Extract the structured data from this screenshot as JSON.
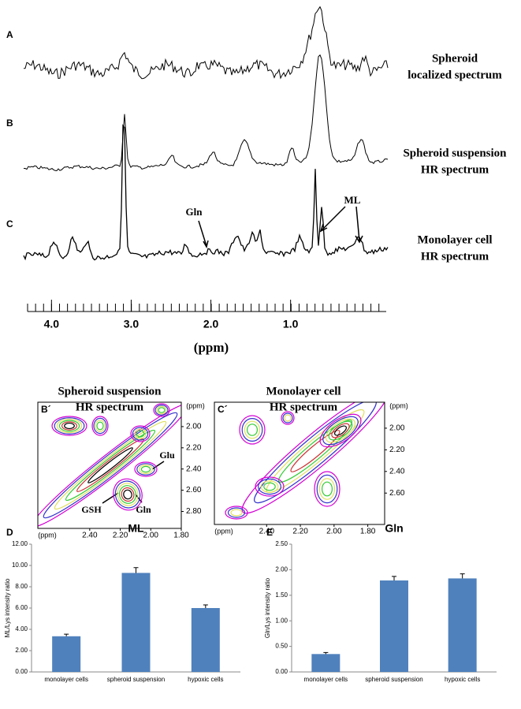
{
  "spectra": {
    "panels": [
      {
        "letter": "A",
        "caption": [
          "Spheroid",
          "localized spectrum"
        ]
      },
      {
        "letter": "B",
        "caption": [
          "Spheroid suspension",
          "HR spectrum"
        ]
      },
      {
        "letter": "C",
        "caption": [
          "Monolayer cell",
          "HR spectrum"
        ]
      }
    ],
    "annotations": [
      "Gln",
      "ML"
    ],
    "xlim": [
      4.3,
      -0.2
    ],
    "xticks": [
      {
        "value": 4,
        "label": "4.0"
      },
      {
        "value": 3,
        "label": "3.0"
      },
      {
        "value": 2,
        "label": "2.0"
      },
      {
        "value": 1,
        "label": "1.0"
      }
    ],
    "xlabel": "(ppm)"
  },
  "cosy": [
    {
      "letter": "B´",
      "title": [
        "Spheroid suspension",
        "HR spectrum"
      ],
      "unit": "(ppm)",
      "xlim": [
        2.74,
        1.8
      ],
      "ylim": [
        1.77,
        2.96
      ],
      "xticks": [
        {
          "value": 2.4,
          "label": "2.40"
        },
        {
          "value": 2.2,
          "label": "2.20"
        },
        {
          "value": 2,
          "label": "2.00"
        },
        {
          "value": 1.8,
          "label": "1.80"
        }
      ],
      "yticks": [
        {
          "value": 2,
          "label": "2.00"
        },
        {
          "value": 2.2,
          "label": "2.20"
        },
        {
          "value": 2.4,
          "label": "2.40"
        },
        {
          "value": 2.6,
          "label": "2.60"
        },
        {
          "value": 2.8,
          "label": "2.80"
        }
      ],
      "annotations": [
        "Glu",
        "GSH",
        "Gln"
      ]
    },
    {
      "letter": "C´",
      "title": [
        "Monolayer cell",
        "HR spectrum"
      ],
      "unit": "(ppm)",
      "xlim": [
        2.71,
        1.7
      ],
      "ylim": [
        1.76,
        2.89
      ],
      "xticks": [
        {
          "value": 2.4,
          "label": "2.40"
        },
        {
          "value": 2.2,
          "label": "2.20"
        },
        {
          "value": 2,
          "label": "2.00"
        },
        {
          "value": 1.8,
          "label": "1.80"
        }
      ],
      "yticks": [
        {
          "value": 2,
          "label": "2.00"
        },
        {
          "value": 2.2,
          "label": "2.20"
        },
        {
          "value": 2.4,
          "label": "2.40"
        },
        {
          "value": 2.6,
          "label": "2.60"
        }
      ]
    }
  ],
  "chart_data": [
    {
      "type": "bar",
      "letter": "D",
      "title": "ML",
      "ylabel": "ML/Lys intensity ratio",
      "color": "#4f81bd",
      "categories": [
        "monolayer cells",
        "spheroid suspension",
        "hypoxic cells"
      ],
      "values": [
        3.35,
        9.3,
        6.0
      ],
      "errors": [
        0.2,
        0.5,
        0.3
      ],
      "ylim": [
        0,
        12
      ],
      "yticks": [
        {
          "value": 0,
          "label": "0.00"
        },
        {
          "value": 2,
          "label": "2.00"
        },
        {
          "value": 4,
          "label": "4.00"
        },
        {
          "value": 6,
          "label": "6.00"
        },
        {
          "value": 8,
          "label": "8.00"
        },
        {
          "value": 10,
          "label": "10.00"
        },
        {
          "value": 12,
          "label": "12.00"
        }
      ]
    },
    {
      "type": "bar",
      "letter": "E",
      "title": "Gln",
      "ylabel": "Gln/Lys intensity ratio",
      "color": "#4f81bd",
      "categories": [
        "monolayer cells",
        "spheroid suspension",
        "hypoxic cells"
      ],
      "values": [
        0.35,
        1.79,
        1.83
      ],
      "errors": [
        0.03,
        0.08,
        0.09
      ],
      "ylim": [
        0,
        2.5
      ],
      "yticks": [
        {
          "value": 0,
          "label": "0.00"
        },
        {
          "value": 0.5,
          "label": "0.50"
        },
        {
          "value": 1,
          "label": "1.00"
        },
        {
          "value": 1.5,
          "label": "1.50"
        },
        {
          "value": 2,
          "label": "2.00"
        },
        {
          "value": 2.5,
          "label": "2.50"
        }
      ]
    }
  ]
}
